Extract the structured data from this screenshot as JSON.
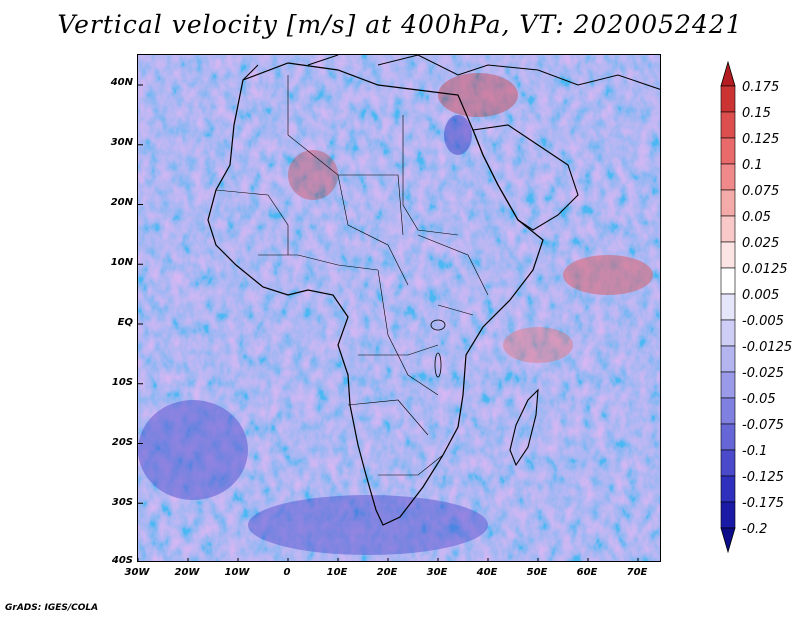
{
  "title": "Vertical velocity [m/s] at 400hPa, VT: 2020052421",
  "footer": "GrADS: IGES/COLA",
  "map": {
    "lon_range": [
      -30,
      75
    ],
    "lat_range": [
      -40,
      45
    ],
    "lat_ticks": [
      "40N",
      "30N",
      "20N",
      "10N",
      "EQ",
      "10S",
      "20S",
      "30S",
      "40S"
    ],
    "lon_ticks": [
      "30W",
      "20W",
      "10W",
      "0",
      "10E",
      "20E",
      "30E",
      "40E",
      "50E",
      "60E",
      "70E"
    ]
  },
  "colorbar": {
    "levels": [
      "0.175",
      "0.15",
      "0.125",
      "0.1",
      "0.075",
      "0.05",
      "0.025",
      "0.0125",
      "0.005",
      "-0.005",
      "-0.0125",
      "-0.025",
      "-0.05",
      "-0.075",
      "-0.1",
      "-0.125",
      "-0.175",
      "-0.2"
    ],
    "colors": [
      "#b31d21",
      "#cc3333",
      "#dd4f4f",
      "#e86a6a",
      "#f08a8a",
      "#f5aaaa",
      "#f9c8c8",
      "#fce4e4",
      "#ffffff",
      "#e6e6fb",
      "#cdcdf5",
      "#b4b4ef",
      "#9a9ae8",
      "#8080e0",
      "#6666d6",
      "#4a4acb",
      "#3030bf",
      "#1a1aa6",
      "#0d0d8a"
    ]
  }
}
